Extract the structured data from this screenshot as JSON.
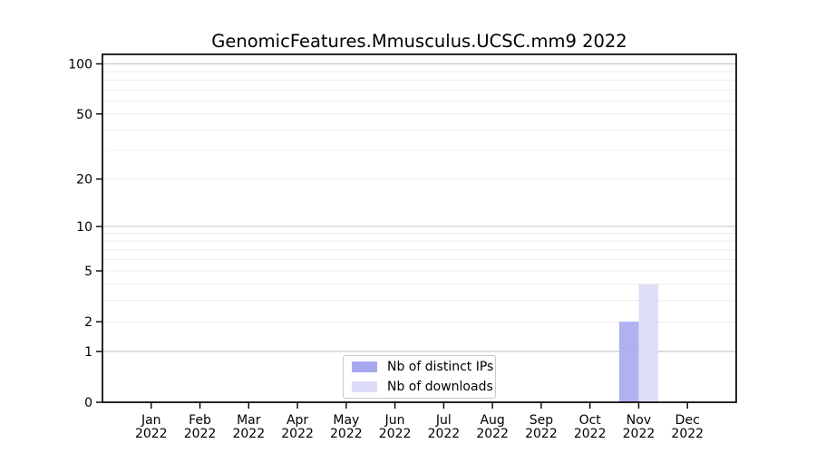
{
  "chart_data": {
    "type": "bar",
    "title": "GenomicFeatures.Mmusculus.UCSC.mm9 2022",
    "xlabel": "",
    "ylabel": "",
    "categories": [
      {
        "month": "Jan",
        "year": "2022"
      },
      {
        "month": "Feb",
        "year": "2022"
      },
      {
        "month": "Mar",
        "year": "2022"
      },
      {
        "month": "Apr",
        "year": "2022"
      },
      {
        "month": "May",
        "year": "2022"
      },
      {
        "month": "Jun",
        "year": "2022"
      },
      {
        "month": "Jul",
        "year": "2022"
      },
      {
        "month": "Aug",
        "year": "2022"
      },
      {
        "month": "Sep",
        "year": "2022"
      },
      {
        "month": "Oct",
        "year": "2022"
      },
      {
        "month": "Nov",
        "year": "2022"
      },
      {
        "month": "Dec",
        "year": "2022"
      }
    ],
    "series": [
      {
        "name": "Nb of distinct IPs",
        "color": "#a8a8ef",
        "values": [
          0,
          0,
          0,
          0,
          0,
          0,
          0,
          0,
          0,
          0,
          2,
          0
        ]
      },
      {
        "name": "Nb of downloads",
        "color": "#dcdcf8",
        "values": [
          0,
          0,
          0,
          0,
          0,
          0,
          0,
          0,
          0,
          0,
          4,
          0
        ]
      }
    ],
    "yscale": "log1p",
    "ylim": [
      0,
      114
    ],
    "yticks": [
      0,
      1,
      2,
      5,
      10,
      20,
      50,
      100
    ],
    "gridlines": {
      "major_values": [
        1,
        10,
        100
      ],
      "minor_values": [
        2,
        3,
        4,
        5,
        6,
        7,
        8,
        9,
        20,
        30,
        40,
        50,
        60,
        70,
        80,
        90
      ],
      "major_color": "#c9c9c9",
      "minor_color": "#ececec"
    },
    "legend": {
      "position": "lower center"
    },
    "axes": {
      "spine_color": "#000000",
      "tick_color": "#000000",
      "label_color": "#000000",
      "background": "#ffffff"
    }
  }
}
